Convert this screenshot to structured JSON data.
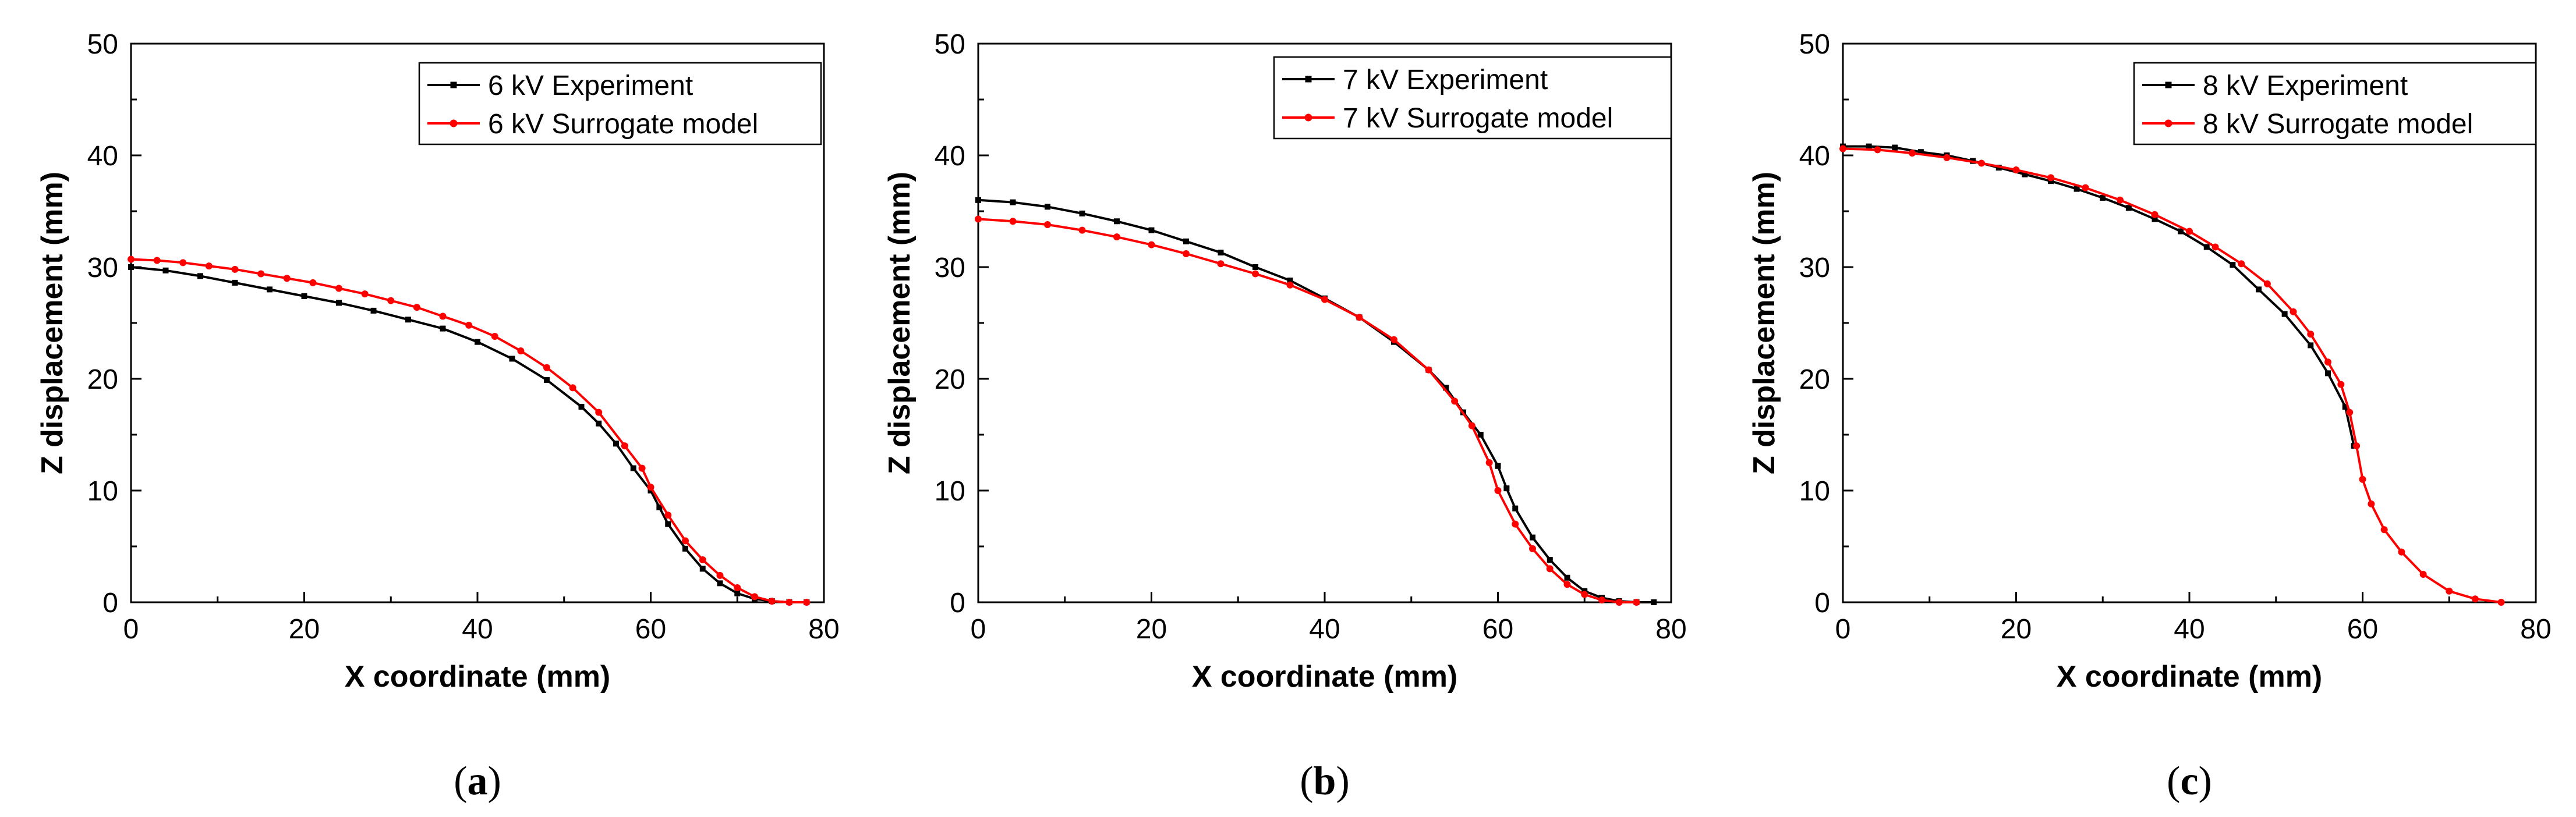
{
  "chart_data": [
    {
      "type": "line",
      "panel_label": "a",
      "xlabel": "X coordinate (mm)",
      "ylabel": "Z displacement (mm)",
      "xlim": [
        0,
        80
      ],
      "ylim": [
        0,
        50
      ],
      "xticks": [
        0,
        20,
        40,
        60,
        80
      ],
      "yticks": [
        0,
        10,
        20,
        30,
        40,
        50
      ],
      "legend_position": "top-right",
      "series": [
        {
          "name": "6 kV Experiment",
          "color": "#000000",
          "marker": "square",
          "x": [
            0,
            4,
            8,
            12,
            16,
            20,
            24,
            28,
            32,
            36,
            40,
            44,
            48,
            52,
            54,
            56,
            58,
            60,
            61,
            62,
            64,
            66,
            68,
            70,
            72,
            74,
            76,
            78
          ],
          "y": [
            30.0,
            29.7,
            29.2,
            28.6,
            28.0,
            27.4,
            26.8,
            26.1,
            25.3,
            24.5,
            23.3,
            21.8,
            19.9,
            17.5,
            16.0,
            14.2,
            12.0,
            10.0,
            8.5,
            7.0,
            4.8,
            3.0,
            1.7,
            0.8,
            0.3,
            0.1,
            0.0,
            0.0
          ]
        },
        {
          "name": "6 kV Surrogate model",
          "color": "#ff0000",
          "marker": "circle",
          "x": [
            0,
            3,
            6,
            9,
            12,
            15,
            18,
            21,
            24,
            27,
            30,
            33,
            36,
            39,
            42,
            45,
            48,
            51,
            54,
            57,
            59,
            60,
            62,
            64,
            66,
            68,
            70,
            72,
            74,
            76,
            78
          ],
          "y": [
            30.7,
            30.6,
            30.4,
            30.1,
            29.8,
            29.4,
            29.0,
            28.6,
            28.1,
            27.6,
            27.0,
            26.4,
            25.6,
            24.8,
            23.8,
            22.5,
            21.0,
            19.2,
            17.0,
            14.0,
            12.0,
            10.3,
            7.8,
            5.5,
            3.8,
            2.4,
            1.3,
            0.5,
            0.1,
            0.0,
            0.0
          ]
        }
      ]
    },
    {
      "type": "line",
      "panel_label": "b",
      "xlabel": "X coordinate (mm)",
      "ylabel": "Z displacement (mm)",
      "xlim": [
        0,
        80
      ],
      "ylim": [
        0,
        50
      ],
      "xticks": [
        0,
        20,
        40,
        60,
        80
      ],
      "yticks": [
        0,
        10,
        20,
        30,
        40,
        50
      ],
      "legend_position": "top-right",
      "series": [
        {
          "name": "7 kV Experiment",
          "color": "#000000",
          "marker": "square",
          "x": [
            0,
            4,
            8,
            12,
            16,
            20,
            24,
            28,
            32,
            36,
            40,
            44,
            48,
            52,
            54,
            56,
            58,
            60,
            61,
            62,
            64,
            66,
            68,
            70,
            72,
            74,
            76,
            78
          ],
          "y": [
            36.0,
            35.8,
            35.4,
            34.8,
            34.1,
            33.3,
            32.3,
            31.3,
            30.0,
            28.8,
            27.2,
            25.5,
            23.3,
            20.8,
            19.2,
            17.0,
            15.0,
            12.2,
            10.2,
            8.4,
            5.8,
            3.8,
            2.2,
            1.0,
            0.4,
            0.1,
            0.0,
            0.0
          ]
        },
        {
          "name": "7 kV Surrogate model",
          "color": "#ff0000",
          "marker": "circle",
          "x": [
            0,
            4,
            8,
            12,
            16,
            20,
            24,
            28,
            32,
            36,
            40,
            44,
            48,
            52,
            55,
            57,
            59,
            60,
            62,
            64,
            66,
            68,
            70,
            72,
            74,
            76
          ],
          "y": [
            34.3,
            34.1,
            33.8,
            33.3,
            32.7,
            32.0,
            31.2,
            30.3,
            29.4,
            28.4,
            27.1,
            25.5,
            23.5,
            20.8,
            18.0,
            15.8,
            12.5,
            10.0,
            7.0,
            4.8,
            3.0,
            1.6,
            0.7,
            0.2,
            0.0,
            0.0
          ]
        }
      ]
    },
    {
      "type": "line",
      "panel_label": "c",
      "xlabel": "X coordinate (mm)",
      "ylabel": "Z displacement (mm)",
      "xlim": [
        0,
        80
      ],
      "ylim": [
        0,
        50
      ],
      "xticks": [
        0,
        20,
        40,
        60,
        80
      ],
      "yticks": [
        0,
        10,
        20,
        30,
        40,
        50
      ],
      "legend_position": "top-right",
      "series": [
        {
          "name": "8 kV Experiment",
          "color": "#000000",
          "marker": "square",
          "x": [
            0,
            3,
            6,
            9,
            12,
            15,
            18,
            21,
            24,
            27,
            30,
            33,
            36,
            39,
            42,
            45,
            48,
            51,
            54,
            56,
            58,
            59
          ],
          "y": [
            40.8,
            40.8,
            40.7,
            40.3,
            40.0,
            39.5,
            38.9,
            38.3,
            37.7,
            37.0,
            36.2,
            35.3,
            34.3,
            33.2,
            31.8,
            30.2,
            28.0,
            25.8,
            23.0,
            20.5,
            17.5,
            14.0
          ]
        },
        {
          "name": "8 kV Surrogate model",
          "color": "#ff0000",
          "marker": "circle",
          "x": [
            0,
            4,
            8,
            12,
            16,
            20,
            24,
            28,
            32,
            36,
            40,
            43,
            46,
            49,
            52,
            54,
            56,
            57.5,
            58.5,
            59.3,
            60,
            61,
            62.5,
            64.5,
            67,
            70,
            73,
            76
          ],
          "y": [
            40.6,
            40.5,
            40.2,
            39.8,
            39.3,
            38.7,
            38.0,
            37.1,
            36.0,
            34.7,
            33.2,
            31.8,
            30.3,
            28.5,
            26.0,
            24.0,
            21.5,
            19.5,
            17.0,
            14.0,
            11.0,
            8.8,
            6.5,
            4.5,
            2.5,
            1.0,
            0.3,
            0.0
          ]
        }
      ]
    }
  ]
}
